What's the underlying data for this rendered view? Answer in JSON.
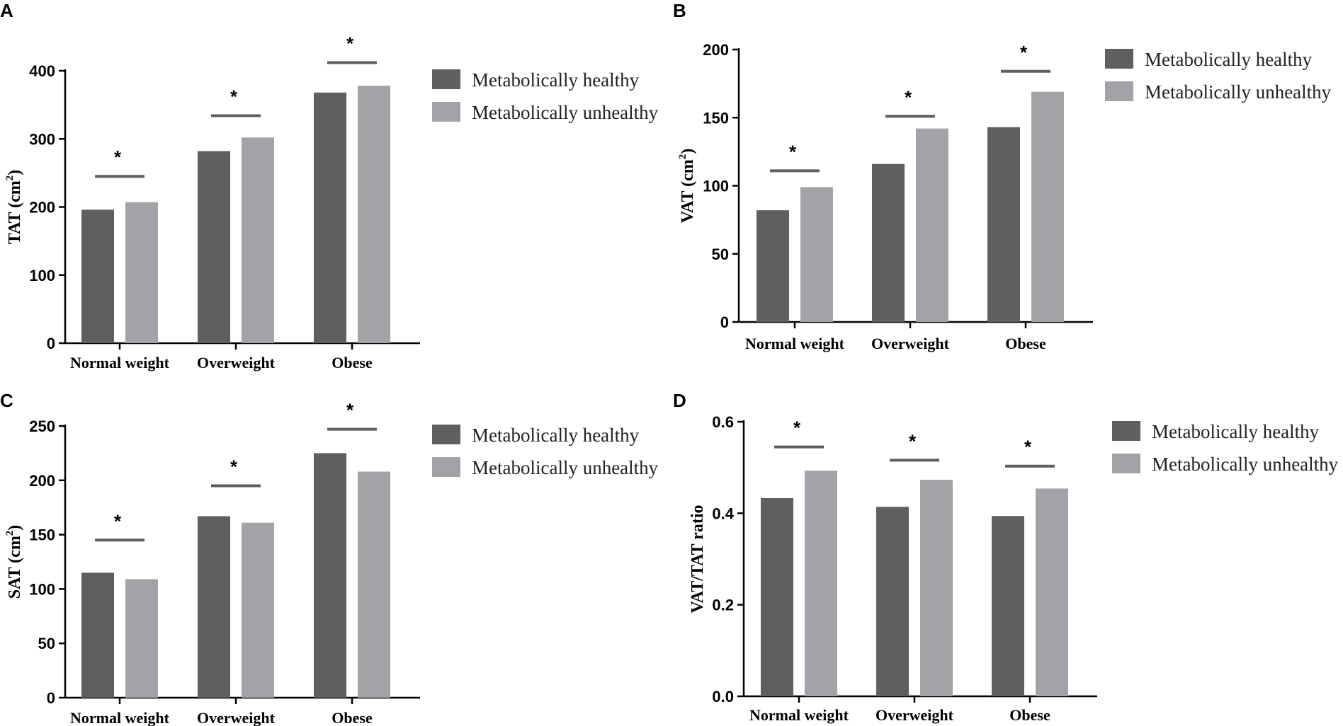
{
  "colors": {
    "healthy": "#5f5f5f",
    "unhealthy": "#a3a3a7",
    "sig_line": "#5f5f5f",
    "axis": "#000000"
  },
  "legend": [
    "Metabolically healthy",
    "Metabolically unhealthy"
  ],
  "chart_data": [
    {
      "panel": "A",
      "type": "bar",
      "title": "",
      "ylabel": "TAT (cm",
      "ylabel_sup": "2",
      "ylabel_tail": ")",
      "categories": [
        "Normal weight",
        "Overweight",
        "Obese"
      ],
      "series": [
        {
          "name": "Metabolically healthy",
          "values": [
            196,
            282,
            368
          ]
        },
        {
          "name": "Metabolically unhealthy",
          "values": [
            207,
            302,
            378
          ]
        }
      ],
      "significance": [
        {
          "symbol": "*",
          "level": 245
        },
        {
          "symbol": "*",
          "level": 334
        },
        {
          "symbol": "*",
          "level": 412
        }
      ],
      "ylim": [
        0,
        400
      ],
      "yticks": [
        "0",
        "100",
        "200",
        "300",
        "400"
      ],
      "ytick_values": [
        0,
        100,
        200,
        300,
        400
      ],
      "legend_position": "top-right"
    },
    {
      "panel": "B",
      "type": "bar",
      "title": "",
      "ylabel": "VAT (cm",
      "ylabel_sup": "2",
      "ylabel_tail": ")",
      "categories": [
        "Normal weight",
        "Overweight",
        "Obese"
      ],
      "series": [
        {
          "name": "Metabolically healthy",
          "values": [
            82,
            116,
            143
          ]
        },
        {
          "name": "Metabolically unhealthy",
          "values": [
            99,
            142,
            169
          ]
        }
      ],
      "significance": [
        {
          "symbol": "*",
          "level": 111
        },
        {
          "symbol": "*",
          "level": 151
        },
        {
          "symbol": "*",
          "level": 184
        }
      ],
      "ylim": [
        0,
        200
      ],
      "yticks": [
        "0",
        "50",
        "100",
        "150",
        "200"
      ],
      "ytick_values": [
        0,
        50,
        100,
        150,
        200
      ],
      "legend_position": "top-right"
    },
    {
      "panel": "C",
      "type": "bar",
      "title": "",
      "ylabel": "SAT (cm",
      "ylabel_sup": "2",
      "ylabel_tail": ")",
      "categories": [
        "Normal weight",
        "Overweight",
        "Obese"
      ],
      "series": [
        {
          "name": "Metabolically healthy",
          "values": [
            115,
            167,
            225
          ]
        },
        {
          "name": "Metabolically unhealthy",
          "values": [
            109,
            161,
            208
          ]
        }
      ],
      "significance": [
        {
          "symbol": "*",
          "level": 145
        },
        {
          "symbol": "*",
          "level": 195
        },
        {
          "symbol": "*",
          "level": 247
        }
      ],
      "ylim": [
        0,
        250
      ],
      "yticks": [
        "0",
        "50",
        "100",
        "150",
        "200",
        "250"
      ],
      "ytick_values": [
        0,
        50,
        100,
        150,
        200,
        250
      ],
      "legend_position": "top-right"
    },
    {
      "panel": "D",
      "type": "bar",
      "title": "",
      "ylabel": "VAT/TAT ratio",
      "ylabel_sup": "",
      "ylabel_tail": "",
      "categories": [
        "Normal weight",
        "Overweight",
        "Obese"
      ],
      "series": [
        {
          "name": "Metabolically healthy",
          "values": [
            0.433,
            0.414,
            0.394
          ]
        },
        {
          "name": "Metabolically unhealthy",
          "values": [
            0.493,
            0.473,
            0.454
          ]
        }
      ],
      "significance": [
        {
          "symbol": "*",
          "level": 0.545
        },
        {
          "symbol": "*",
          "level": 0.516
        },
        {
          "symbol": "*",
          "level": 0.503
        }
      ],
      "ylim": [
        0,
        0.6
      ],
      "yticks": [
        "0.0",
        "0.2",
        "0.4",
        "0.6"
      ],
      "ytick_values": [
        0,
        0.2,
        0.4,
        0.6
      ],
      "legend_position": "top-right"
    }
  ]
}
